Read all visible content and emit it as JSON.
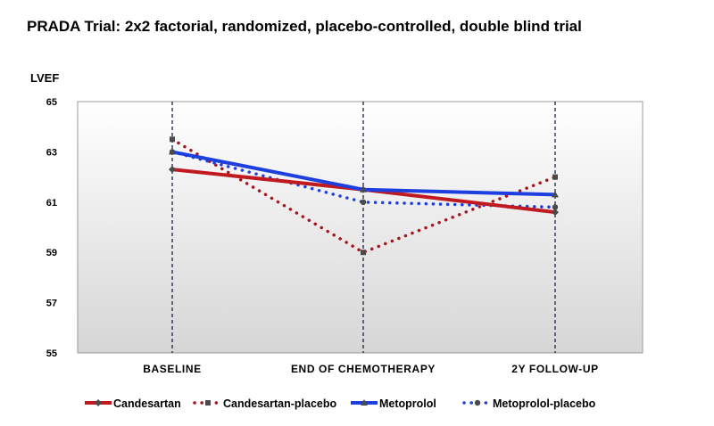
{
  "chart_data": {
    "type": "line",
    "title": "PRADA Trial: 2x2 factorial, randomized, placebo-controlled, double blind trial",
    "ylabel": "LVEF",
    "xlabel": "",
    "categories": [
      "BASELINE",
      "END OF CHEMOTHERAPY",
      "2Y FOLLOW-UP"
    ],
    "ylim": [
      55,
      65
    ],
    "yticks": [
      55,
      57,
      59,
      61,
      63,
      65
    ],
    "grid": false,
    "legend_position": "bottom",
    "series": [
      {
        "name": "Candesartan",
        "values": [
          62.3,
          61.5,
          60.6
        ],
        "color": "#c0191f",
        "style": "solid",
        "marker": "diamond"
      },
      {
        "name": "Candesartan-placebo",
        "values": [
          63.5,
          59.0,
          62.0
        ],
        "color": "#a8141c",
        "style": "dotted",
        "marker": "square"
      },
      {
        "name": "Metoprolol",
        "values": [
          63.0,
          61.5,
          61.3
        ],
        "color": "#1e3fe0",
        "style": "solid",
        "marker": "triangle"
      },
      {
        "name": "Metoprolol-placebo",
        "values": [
          63.0,
          61.0,
          60.8
        ],
        "color": "#1e3fe0",
        "style": "dotted",
        "marker": "circle"
      }
    ]
  }
}
